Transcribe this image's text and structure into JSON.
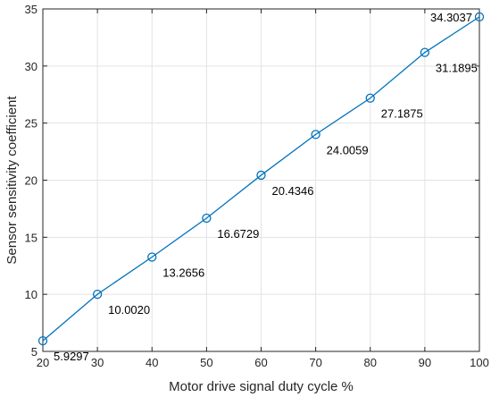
{
  "chart_data": {
    "type": "line",
    "title": "",
    "xlabel": "Motor drive signal duty cycle %",
    "ylabel": "Sensor sensitivity coefficient",
    "xlim": [
      20,
      100
    ],
    "ylim": [
      5,
      35
    ],
    "xticks": [
      20,
      30,
      40,
      50,
      60,
      70,
      80,
      90,
      100
    ],
    "yticks": [
      5,
      10,
      15,
      20,
      25,
      30,
      35
    ],
    "grid": true,
    "marker": "circle",
    "color": "#0072bd",
    "x": [
      20,
      30,
      40,
      50,
      60,
      70,
      80,
      90,
      100
    ],
    "y": [
      5.9297,
      10.002,
      13.2656,
      16.6729,
      20.4346,
      24.0059,
      27.1875,
      31.1895,
      34.3037
    ],
    "labels": [
      "5.9297",
      "10.0020",
      "13.2656",
      "16.6729",
      "20.4346",
      "24.0059",
      "27.1875",
      "31.1895",
      "34.3037"
    ]
  }
}
